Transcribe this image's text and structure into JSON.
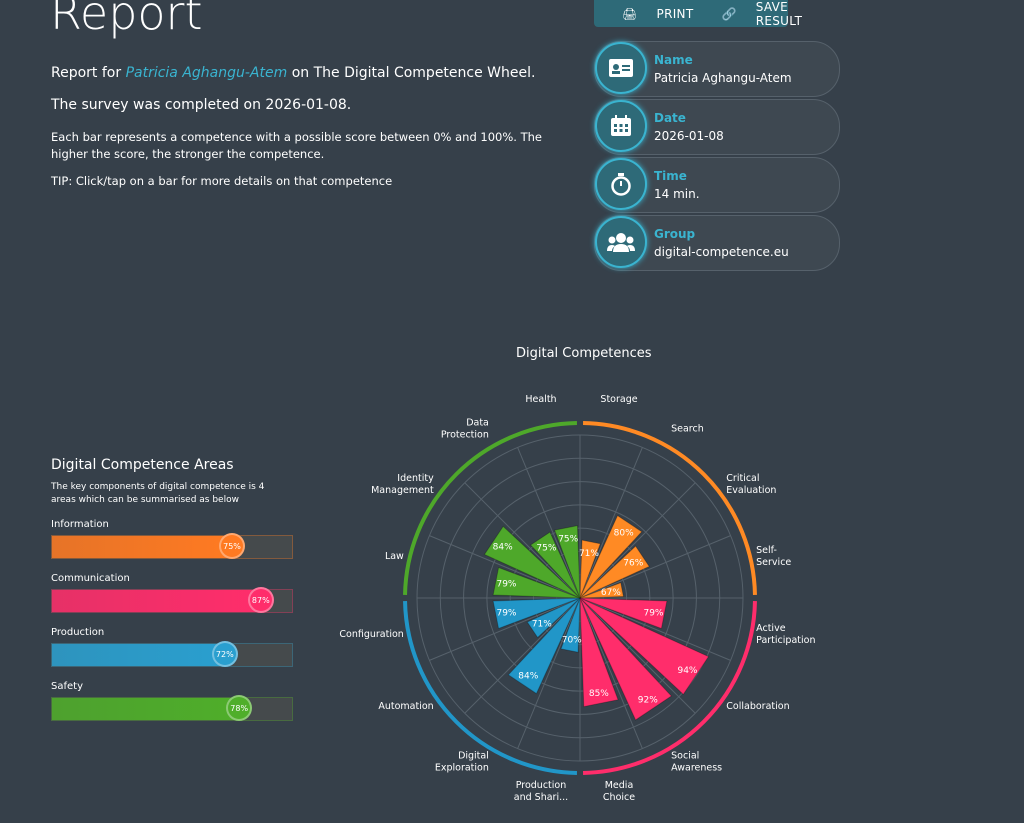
{
  "header": {
    "title": "Report",
    "report_for_prefix": "Report for ",
    "person": "Patricia Aghangu-Atem",
    "report_for_suffix": " on The Digital Competence Wheel.",
    "completed": "The survey was completed on 2026-01-08.",
    "description": "Each bar represents a competence with a possible score between 0% and 100%. The higher the score, the stronger the competence.",
    "tip": "TIP: Click/tap on a bar for more details on that competence"
  },
  "toolbar": {
    "print": "PRINT",
    "save": "SAVE RESULT"
  },
  "info": [
    {
      "label": "Name",
      "value": "Patricia Aghangu-Atem",
      "icon": "id-card-icon"
    },
    {
      "label": "Date",
      "value": "2026-01-08",
      "icon": "calendar-icon"
    },
    {
      "label": "Time",
      "value": "14 min.",
      "icon": "stopwatch-icon"
    },
    {
      "label": "Group",
      "value": "digital-competence.eu",
      "icon": "users-icon"
    }
  ],
  "areas": {
    "title": "Digital Competence Areas",
    "description": "The key components of digital competence is 4 areas which can be summarised as below",
    "items": [
      {
        "label": "Information",
        "value": 75,
        "text": "75%",
        "color": "#ff7a22"
      },
      {
        "label": "Communication",
        "value": 87,
        "text": "87%",
        "color": "#ff2d6b"
      },
      {
        "label": "Production",
        "value": 72,
        "text": "72%",
        "color": "#2a9fcf"
      },
      {
        "label": "Safety",
        "value": 78,
        "text": "78%",
        "color": "#4fae2a"
      }
    ]
  },
  "chart_data": {
    "type": "polar-bar",
    "title": "Digital Competences",
    "rlim": [
      55,
      100
    ],
    "categories": [
      "Storage",
      "Search",
      "Critical Evaluation",
      "Self-Service",
      "Active Participation",
      "Collaboration",
      "Social Awareness",
      "Media Choice",
      "Production and Shari...",
      "Digital Exploration",
      "Automation",
      "Configuration",
      "Law",
      "Identity Management",
      "Data Protection",
      "Health"
    ],
    "values": [
      71,
      80,
      76,
      67,
      79,
      94,
      92,
      85,
      70,
      84,
      71,
      79,
      79,
      84,
      75,
      75
    ],
    "areas": [
      "Information",
      "Information",
      "Information",
      "Information",
      "Communication",
      "Communication",
      "Communication",
      "Communication",
      "Production",
      "Production",
      "Production",
      "Production",
      "Safety",
      "Safety",
      "Safety",
      "Safety"
    ],
    "area_colors": {
      "Information": "#ff8a24",
      "Communication": "#ff2d6b",
      "Production": "#2196c8",
      "Safety": "#4ea82a"
    }
  }
}
